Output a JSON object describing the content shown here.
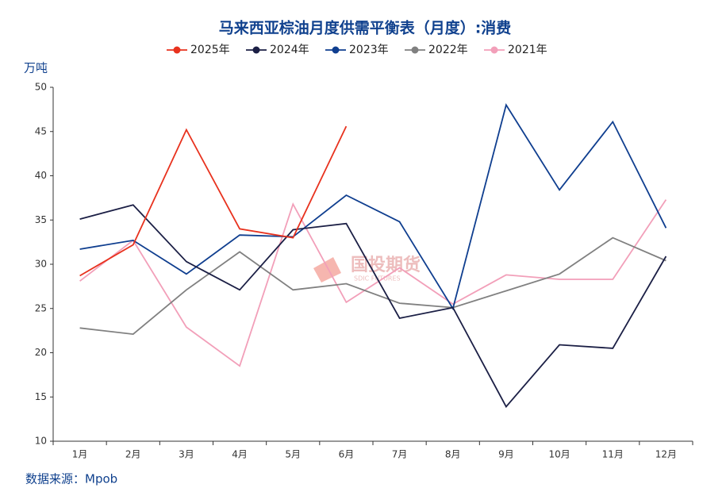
{
  "chart_data": {
    "type": "line",
    "title": "马来西亚棕油月度供需平衡表（月度）:消费",
    "y_label": "万吨",
    "source": "数据来源：Mpob",
    "watermark": {
      "text": "国投期货",
      "subtext": "SDIC FUTURES"
    },
    "categories": [
      "1月",
      "2月",
      "3月",
      "4月",
      "5月",
      "6月",
      "7月",
      "8月",
      "9月",
      "10月",
      "11月",
      "12月"
    ],
    "series": [
      {
        "name": "2025年",
        "color": "#e8321e",
        "values": [
          28.7,
          32.2,
          45.2,
          34.0,
          33.0,
          45.6,
          null,
          null,
          null,
          null,
          null,
          null
        ]
      },
      {
        "name": "2024年",
        "color": "#1b1f45",
        "values": [
          35.1,
          36.7,
          30.3,
          27.1,
          33.9,
          34.6,
          23.9,
          25.1,
          13.9,
          20.9,
          20.5,
          30.9
        ]
      },
      {
        "name": "2023年",
        "color": "#0f3e8f",
        "values": [
          31.7,
          32.7,
          28.9,
          33.3,
          33.1,
          37.8,
          34.8,
          25.0,
          48.0,
          38.4,
          46.1,
          34.1
        ]
      },
      {
        "name": "2022年",
        "color": "#808080",
        "values": [
          22.8,
          22.1,
          27.1,
          31.4,
          27.1,
          27.8,
          25.6,
          25.1,
          27.0,
          28.9,
          33.0,
          30.4
        ]
      },
      {
        "name": "2021年",
        "color": "#f29fb9",
        "values": [
          28.1,
          32.7,
          22.9,
          18.5,
          36.8,
          25.7,
          29.6,
          25.5,
          28.8,
          28.3,
          28.3,
          37.3
        ]
      }
    ],
    "ylim": [
      10,
      50
    ],
    "yticks": [
      10,
      15,
      20,
      25,
      30,
      35,
      40,
      45,
      50
    ],
    "grid": false
  }
}
